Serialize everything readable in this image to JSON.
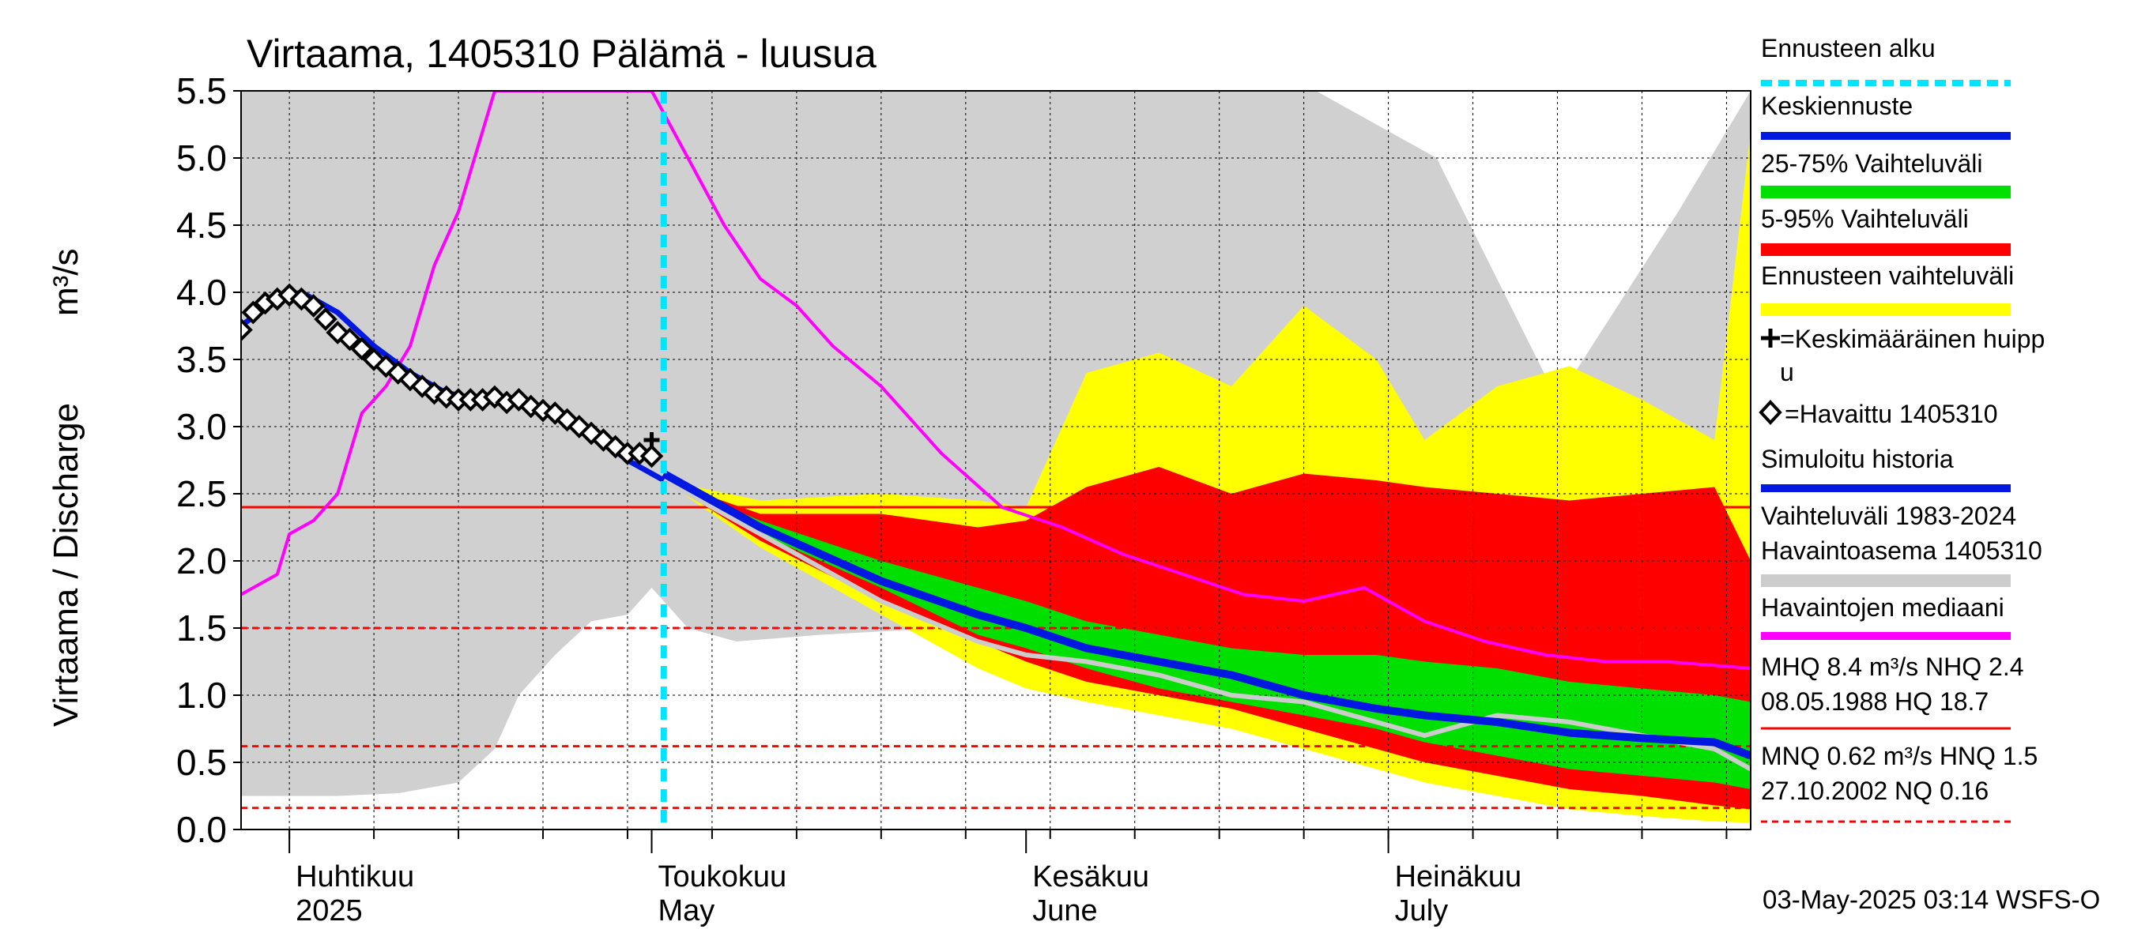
{
  "title": "Virtaama, 1405310 Pälämä - luusua",
  "ylabel_left": "Virtaama / Discharge",
  "ylabel_unit": "m³/s",
  "timestamp": "03-May-2025 03:14 WSFS-O",
  "month_labels": [
    {
      "fi": "Huhtikuu",
      "en": "2025",
      "date": "2025-04-01"
    },
    {
      "fi": "Toukokuu",
      "en": "May",
      "date": "2025-05-01"
    },
    {
      "fi": "Kesäkuu",
      "en": "June",
      "date": "2025-06-01"
    },
    {
      "fi": "Heinäkuu",
      "en": "July",
      "date": "2025-07-01"
    }
  ],
  "legend": [
    {
      "label": "Ennusteen alku",
      "color": "#00e5ff",
      "style": "dashed"
    },
    {
      "label": "Keskiennuste",
      "color": "#0018e0",
      "style": "line"
    },
    {
      "label": "25-75% Vaihteluväli",
      "color": "#00e000",
      "style": "band"
    },
    {
      "label": "5-95% Vaihteluväli",
      "color": "#ff0000",
      "style": "band"
    },
    {
      "label": "Ennusteen vaihteluväli",
      "color": "#ffff00",
      "style": "band"
    },
    {
      "label": "=Keskimääräinen huippu",
      "color": "#000000",
      "style": "plus"
    },
    {
      "label": "=Havaittu 1405310",
      "color": "#000000",
      "style": "diamond"
    },
    {
      "label": "Simuloitu historia",
      "color": "#0018e0",
      "style": "line"
    },
    {
      "label": "Vaihteluväli 1983-2024\n Havaintoasema 1405310",
      "color": "#cccccc",
      "style": "band"
    },
    {
      "label": "Havaintojen mediaani",
      "color": "#ff00ff",
      "style": "line"
    },
    {
      "label": "MHQ  8.4 m³/s NHQ  2.4\n08.05.1988 HQ 18.7",
      "color": "#ff0000",
      "style": "line"
    },
    {
      "label": "MNQ 0.62 m³/s HNQ  1.5\n27.10.2002 NQ 0.16",
      "color": "#ff0000",
      "style": "dotted"
    }
  ],
  "chart_data": {
    "type": "area",
    "title": "Virtaama, 1405310 Pälämä - luusua",
    "ylabel": "Virtaama / Discharge m³/s",
    "ylim": [
      0,
      5.5
    ],
    "yticks": [
      0.0,
      0.5,
      1.0,
      1.5,
      2.0,
      2.5,
      3.0,
      3.5,
      4.0,
      4.5,
      5.0,
      5.5
    ],
    "xlim": [
      "2025-03-28",
      "2025-07-31"
    ],
    "grid": true,
    "forecast_start": "2025-05-02",
    "reference_lines": [
      {
        "name": "NHQ",
        "value": 2.4,
        "style": "solid"
      },
      {
        "name": "HNQ",
        "value": 1.5,
        "style": "dotted"
      },
      {
        "name": "MNQ",
        "value": 0.62,
        "style": "dotted"
      },
      {
        "name": "NQ",
        "value": 0.16,
        "style": "dotted"
      }
    ],
    "history_range": {
      "x": [
        "2025-03-28",
        "2025-04-05",
        "2025-04-10",
        "2025-04-15",
        "2025-04-18",
        "2025-04-20",
        "2025-04-23",
        "2025-04-26",
        "2025-04-29",
        "2025-05-01",
        "2025-05-04",
        "2025-05-08",
        "2025-05-15",
        "2025-05-25",
        "2025-06-05",
        "2025-06-15",
        "2025-06-25",
        "2025-07-05",
        "2025-07-15",
        "2025-07-25",
        "2025-07-31"
      ],
      "low": [
        0.25,
        0.25,
        0.27,
        0.35,
        0.6,
        1.0,
        1.3,
        1.55,
        1.6,
        1.8,
        1.5,
        1.4,
        1.45,
        1.5,
        1.3,
        1.15,
        0.95,
        0.8,
        0.7,
        0.6,
        0.45
      ],
      "high": [
        5.5,
        5.5,
        5.5,
        5.5,
        5.5,
        5.5,
        5.5,
        5.5,
        5.5,
        5.5,
        5.5,
        5.5,
        5.5,
        5.5,
        5.5,
        5.5,
        5.5,
        5.0,
        3.2,
        4.6,
        5.5
      ]
    },
    "forecast_range": {
      "x": [
        "2025-05-02",
        "2025-05-10",
        "2025-05-20",
        "2025-05-28",
        "2025-06-01",
        "2025-06-06",
        "2025-06-12",
        "2025-06-18",
        "2025-06-24",
        "2025-06-30",
        "2025-07-04",
        "2025-07-10",
        "2025-07-16",
        "2025-07-22",
        "2025-07-28",
        "2025-07-31"
      ],
      "low": [
        2.6,
        2.1,
        1.6,
        1.2,
        1.05,
        0.95,
        0.85,
        0.75,
        0.6,
        0.45,
        0.35,
        0.25,
        0.15,
        0.1,
        0.06,
        0.05
      ],
      "high": [
        2.6,
        2.45,
        2.5,
        2.45,
        2.4,
        3.4,
        3.55,
        3.3,
        3.9,
        3.5,
        2.9,
        3.3,
        3.45,
        3.2,
        2.9,
        5.2
      ]
    },
    "range_5_95": {
      "x": [
        "2025-05-02",
        "2025-05-10",
        "2025-05-20",
        "2025-05-28",
        "2025-06-01",
        "2025-06-06",
        "2025-06-12",
        "2025-06-18",
        "2025-06-24",
        "2025-06-30",
        "2025-07-04",
        "2025-07-10",
        "2025-07-16",
        "2025-07-22",
        "2025-07-28",
        "2025-07-31"
      ],
      "low": [
        2.6,
        2.15,
        1.7,
        1.4,
        1.25,
        1.1,
        1.0,
        0.9,
        0.75,
        0.6,
        0.5,
        0.4,
        0.3,
        0.25,
        0.18,
        0.15
      ],
      "high": [
        2.6,
        2.35,
        2.35,
        2.25,
        2.3,
        2.55,
        2.7,
        2.5,
        2.65,
        2.6,
        2.55,
        2.5,
        2.45,
        2.5,
        2.55,
        2.0
      ]
    },
    "range_25_75": {
      "x": [
        "2025-05-02",
        "2025-05-10",
        "2025-05-20",
        "2025-05-28",
        "2025-06-01",
        "2025-06-06",
        "2025-06-12",
        "2025-06-18",
        "2025-06-24",
        "2025-06-30",
        "2025-07-04",
        "2025-07-10",
        "2025-07-16",
        "2025-07-22",
        "2025-07-28",
        "2025-07-31"
      ],
      "low": [
        2.6,
        2.2,
        1.8,
        1.45,
        1.35,
        1.2,
        1.05,
        0.95,
        0.85,
        0.75,
        0.65,
        0.55,
        0.45,
        0.4,
        0.35,
        0.3
      ],
      "high": [
        2.6,
        2.3,
        2.0,
        1.8,
        1.7,
        1.55,
        1.45,
        1.35,
        1.3,
        1.3,
        1.25,
        1.2,
        1.1,
        1.05,
        1.0,
        0.95
      ]
    },
    "series": [
      {
        "name": "Keskiennuste",
        "x": [
          "2025-05-02",
          "2025-05-10",
          "2025-05-20",
          "2025-05-28",
          "2025-06-01",
          "2025-06-06",
          "2025-06-12",
          "2025-06-18",
          "2025-06-24",
          "2025-06-30",
          "2025-07-04",
          "2025-07-10",
          "2025-07-16",
          "2025-07-22",
          "2025-07-28",
          "2025-07-31"
        ],
        "y": [
          2.65,
          2.25,
          1.85,
          1.6,
          1.5,
          1.35,
          1.25,
          1.15,
          1.0,
          0.9,
          0.85,
          0.8,
          0.72,
          0.68,
          0.65,
          0.55
        ]
      },
      {
        "name": "Simuloitu historia",
        "x": [
          "2025-03-28",
          "2025-03-31",
          "2025-04-02",
          "2025-04-05",
          "2025-04-08",
          "2025-04-11",
          "2025-04-14",
          "2025-04-17",
          "2025-04-20",
          "2025-04-23",
          "2025-04-26",
          "2025-04-29",
          "2025-05-02"
        ],
        "y": [
          3.75,
          3.95,
          4.0,
          3.85,
          3.6,
          3.4,
          3.25,
          3.2,
          3.2,
          3.1,
          2.95,
          2.75,
          2.6
        ]
      },
      {
        "name": "Havaittu 1405310",
        "x": [
          "2025-03-28",
          "2025-03-29",
          "2025-03-30",
          "2025-03-31",
          "2025-04-01",
          "2025-04-02",
          "2025-04-03",
          "2025-04-04",
          "2025-04-05",
          "2025-04-06",
          "2025-04-07",
          "2025-04-08",
          "2025-04-09",
          "2025-04-10",
          "2025-04-11",
          "2025-04-12",
          "2025-04-13",
          "2025-04-14",
          "2025-04-15",
          "2025-04-16",
          "2025-04-17",
          "2025-04-18",
          "2025-04-19",
          "2025-04-20",
          "2025-04-21",
          "2025-04-22",
          "2025-04-23",
          "2025-04-24",
          "2025-04-25",
          "2025-04-26",
          "2025-04-27",
          "2025-04-28",
          "2025-04-29",
          "2025-04-30",
          "2025-05-01"
        ],
        "y": [
          3.72,
          3.85,
          3.92,
          3.95,
          3.98,
          3.95,
          3.9,
          3.8,
          3.7,
          3.65,
          3.58,
          3.5,
          3.45,
          3.4,
          3.35,
          3.3,
          3.25,
          3.22,
          3.2,
          3.2,
          3.2,
          3.22,
          3.18,
          3.2,
          3.15,
          3.12,
          3.1,
          3.05,
          3.0,
          2.95,
          2.9,
          2.85,
          2.8,
          2.8,
          2.78
        ]
      },
      {
        "name": "Havaintojen mediaani",
        "x": [
          "2025-03-28",
          "2025-03-31",
          "2025-04-01",
          "2025-04-03",
          "2025-04-05",
          "2025-04-07",
          "2025-04-09",
          "2025-04-11",
          "2025-04-13",
          "2025-04-15",
          "2025-04-18",
          "2025-05-01",
          "2025-05-04",
          "2025-05-07",
          "2025-05-10",
          "2025-05-13",
          "2025-05-16",
          "2025-05-20",
          "2025-05-25",
          "2025-05-30",
          "2025-06-04",
          "2025-06-09",
          "2025-06-14",
          "2025-06-19",
          "2025-06-24",
          "2025-06-29",
          "2025-07-04",
          "2025-07-09",
          "2025-07-14",
          "2025-07-19",
          "2025-07-24",
          "2025-07-31"
        ],
        "y": [
          1.75,
          1.9,
          2.2,
          2.3,
          2.5,
          3.1,
          3.3,
          3.6,
          4.2,
          4.6,
          5.5,
          5.5,
          5.0,
          4.5,
          4.1,
          3.9,
          3.6,
          3.3,
          2.8,
          2.4,
          2.25,
          2.05,
          1.9,
          1.75,
          1.7,
          1.8,
          1.55,
          1.4,
          1.3,
          1.25,
          1.25,
          1.2
        ]
      },
      {
        "name": "Havaintojen mediaani (harmaa)",
        "x": [
          "2025-05-02",
          "2025-05-10",
          "2025-05-20",
          "2025-05-28",
          "2025-06-01",
          "2025-06-06",
          "2025-06-12",
          "2025-06-18",
          "2025-06-24",
          "2025-06-30",
          "2025-07-04",
          "2025-07-10",
          "2025-07-16",
          "2025-07-22",
          "2025-07-28",
          "2025-07-31"
        ],
        "y": [
          2.6,
          2.2,
          1.7,
          1.4,
          1.3,
          1.25,
          1.15,
          1.0,
          0.95,
          0.8,
          0.7,
          0.85,
          0.8,
          0.7,
          0.6,
          0.45
        ]
      }
    ],
    "average_peak": {
      "x": "2025-05-01",
      "y": 2.9
    }
  }
}
